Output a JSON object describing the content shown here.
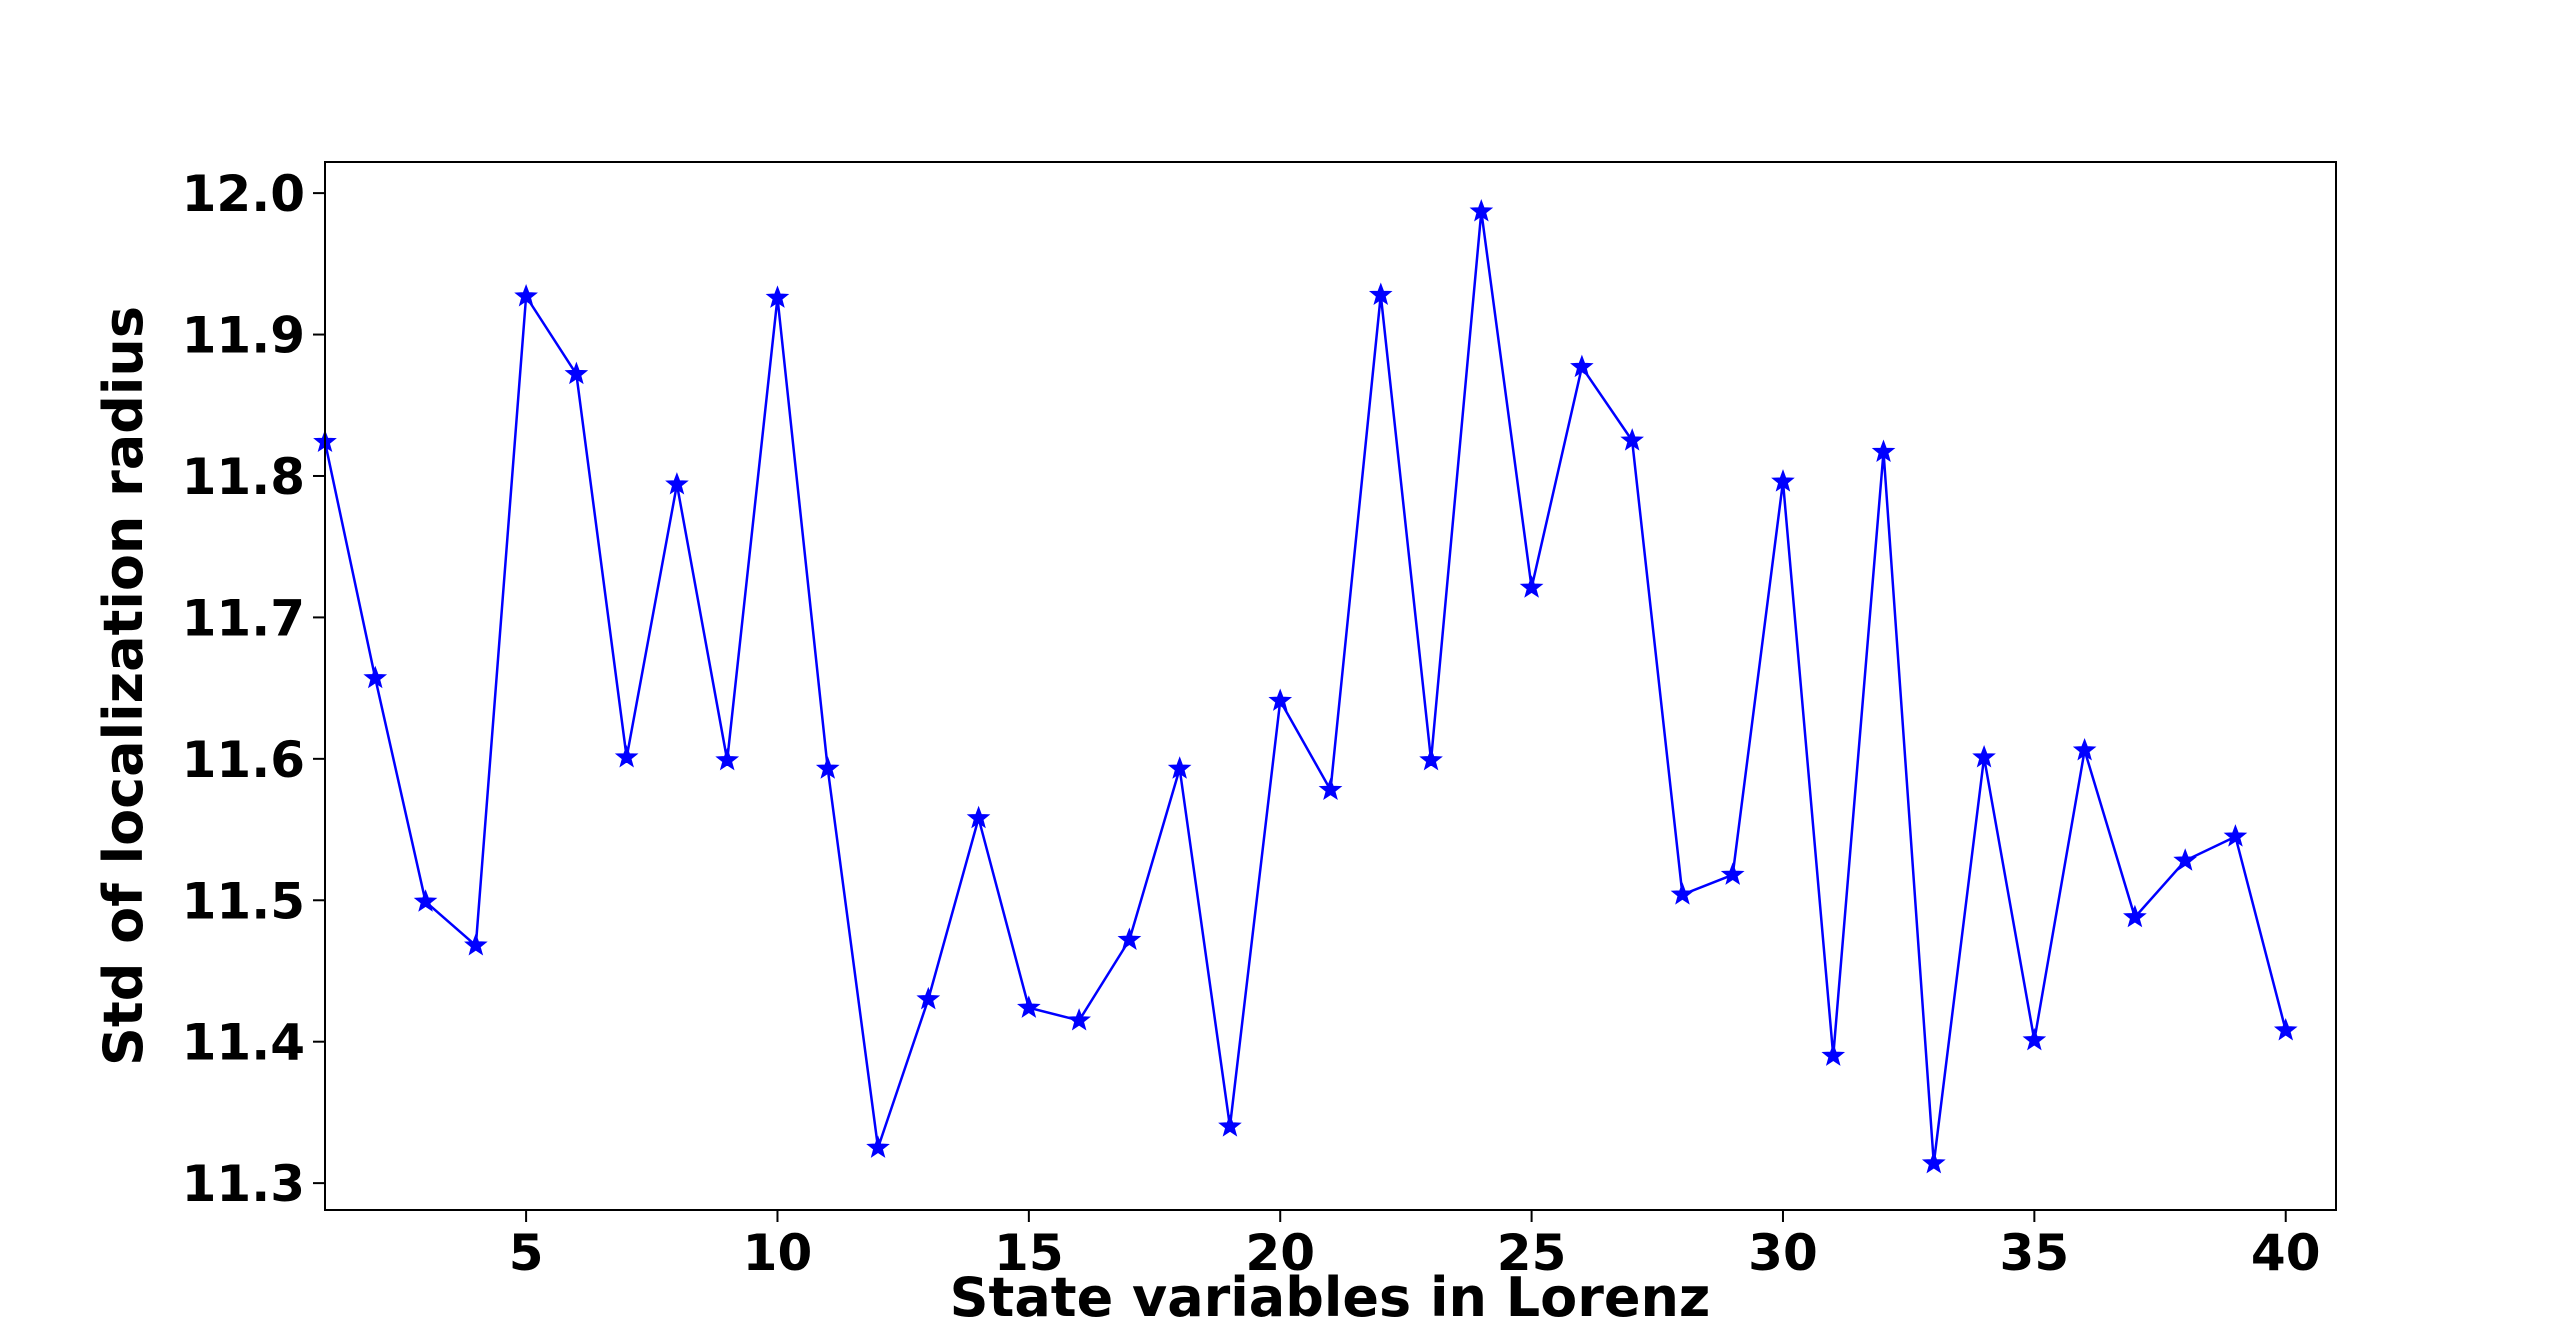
{
  "chart_data": {
    "type": "line",
    "xlabel": "State variables in Lorenz",
    "ylabel": "Std of localization radius",
    "x": [
      1,
      2,
      3,
      4,
      5,
      6,
      7,
      8,
      9,
      10,
      11,
      12,
      13,
      14,
      15,
      16,
      17,
      18,
      19,
      20,
      21,
      22,
      23,
      24,
      25,
      26,
      27,
      28,
      29,
      30,
      31,
      32,
      33,
      34,
      35,
      36,
      37,
      38,
      39,
      40
    ],
    "series": [
      {
        "color": "#0000ff",
        "marker": "star",
        "values": [
          11.824,
          11.657,
          11.499,
          11.468,
          11.927,
          11.872,
          11.601,
          11.794,
          11.599,
          11.926,
          11.593,
          11.325,
          11.43,
          11.558,
          11.424,
          11.415,
          11.472,
          11.593,
          11.34,
          11.641,
          11.578,
          11.928,
          11.599,
          11.987,
          11.721,
          11.877,
          11.825,
          11.504,
          11.518,
          11.796,
          11.39,
          11.817,
          11.314,
          11.601,
          11.401,
          11.606,
          11.488,
          11.528,
          11.545,
          11.408
        ]
      }
    ],
    "xlim": [
      1,
      41
    ],
    "ylim": [
      11.281,
      12.022
    ],
    "xticks": [
      5,
      10,
      15,
      20,
      25,
      30,
      35,
      40
    ],
    "yticks": [
      11.3,
      11.4,
      11.5,
      11.6,
      11.7,
      11.8,
      11.9,
      {
        "value": 12,
        "label": "12.0"
      }
    ],
    "grid": false
  }
}
